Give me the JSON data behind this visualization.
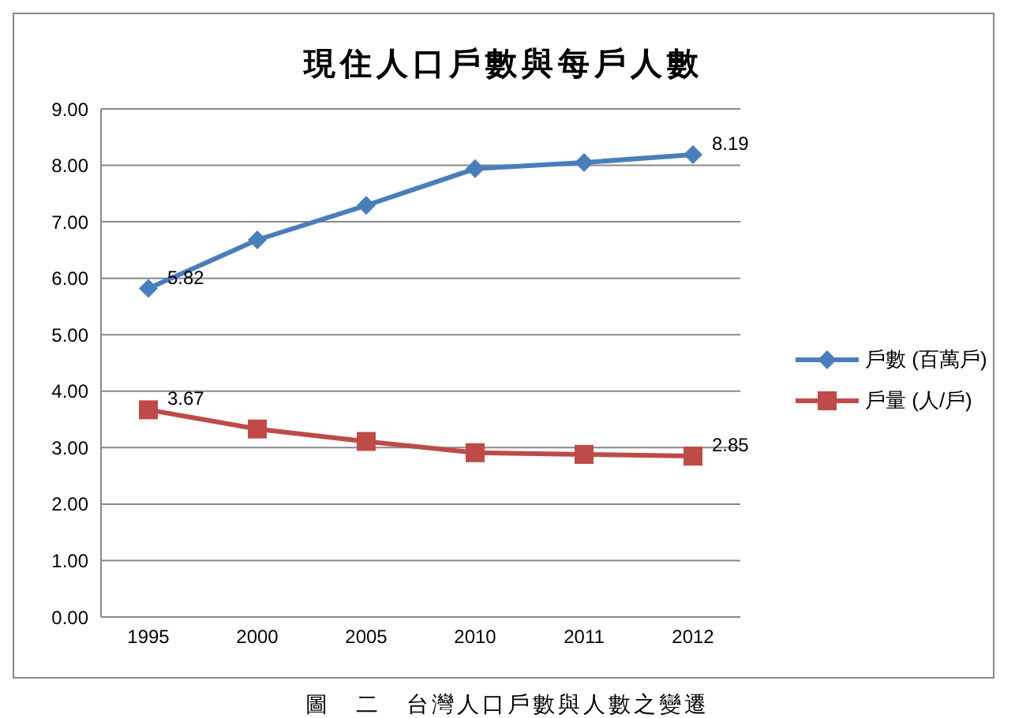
{
  "chart_data": {
    "type": "line",
    "title": "現住人口戶數與每戶人數",
    "categories": [
      "1995",
      "2000",
      "2005",
      "2010",
      "2011",
      "2012"
    ],
    "series": [
      {
        "name": "戶數 (百萬戶)",
        "color": "#4a7ebb",
        "marker": "diamond",
        "values": [
          5.82,
          6.68,
          7.29,
          7.94,
          8.05,
          8.19
        ],
        "value_labels": [
          "5.82",
          null,
          null,
          null,
          null,
          "8.19"
        ]
      },
      {
        "name": "戶量 (人/戶)",
        "color": "#be4b48",
        "marker": "square",
        "values": [
          3.67,
          3.33,
          3.11,
          2.91,
          2.88,
          2.85
        ],
        "value_labels": [
          "3.67",
          null,
          null,
          null,
          null,
          "2.85"
        ]
      }
    ],
    "ylim": [
      0,
      9
    ],
    "yticks": [
      {
        "value": 0,
        "label": "0.00"
      },
      {
        "value": 1,
        "label": "1.00"
      },
      {
        "value": 2,
        "label": "2.00"
      },
      {
        "value": 3,
        "label": "3.00"
      },
      {
        "value": 4,
        "label": "4.00"
      },
      {
        "value": 5,
        "label": "5.00"
      },
      {
        "value": 6,
        "label": "6.00"
      },
      {
        "value": 7,
        "label": "7.00"
      },
      {
        "value": 8,
        "label": "8.00"
      },
      {
        "value": 9,
        "label": "9.00"
      }
    ],
    "grid": "y",
    "legend": "right",
    "line_style": "solid",
    "annotations": [
      "圖　二　台灣人口戶數與人數之變遷"
    ]
  }
}
